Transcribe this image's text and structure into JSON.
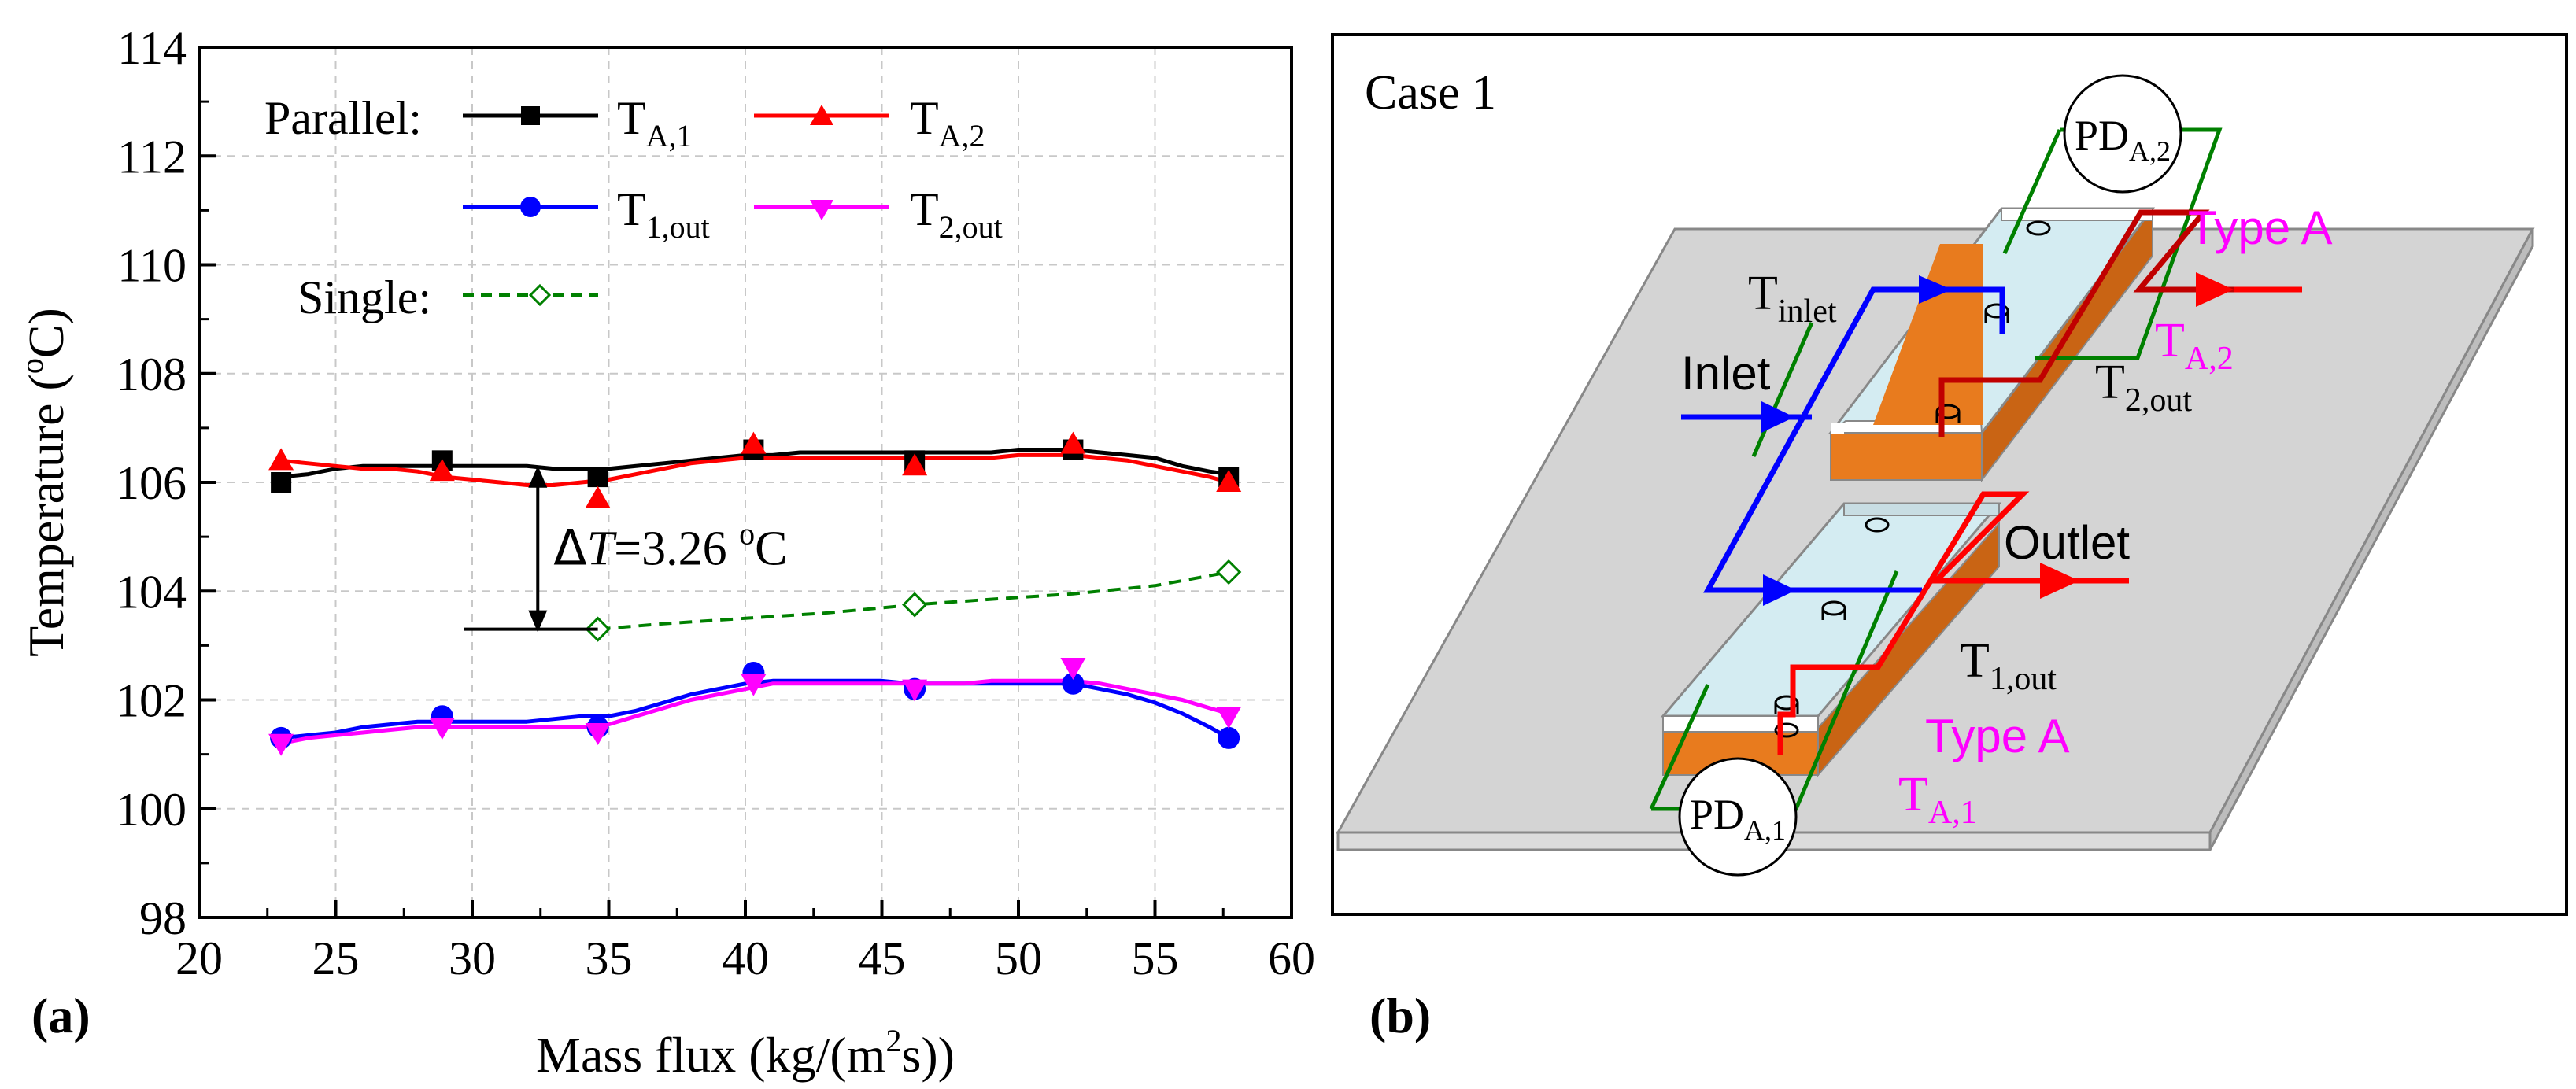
{
  "panel_a_label": "(a)",
  "panel_b_label": "(b)",
  "chart_data": {
    "type": "line",
    "title": "",
    "xlabel": "Mass flux (kg/(m²s))",
    "xlabel_parts": {
      "main": "Mass flux (kg/(m",
      "sup": "2",
      "tail": "s))"
    },
    "ylabel": "Temperature (°C)",
    "ylabel_parts": {
      "main": "Temperature (",
      "sup": "o",
      "tail": "C)"
    },
    "xlim": [
      20,
      60
    ],
    "ylim": [
      98,
      114
    ],
    "xticks": [
      20,
      25,
      30,
      35,
      40,
      45,
      50,
      55,
      60
    ],
    "yticks": [
      98,
      100,
      102,
      104,
      106,
      108,
      110,
      112,
      114
    ],
    "grid": true,
    "legend": {
      "parallel_label": "Parallel:",
      "single_label": "Single:",
      "placement": "top-left"
    },
    "series": [
      {
        "name": "T_A,1",
        "label_main": "T",
        "label_sub": "A,1",
        "color": "#000000",
        "marker": "square",
        "dash": "solid",
        "group": "Parallel",
        "x": [
          23.0,
          28.9,
          34.6,
          40.3,
          46.2,
          52.0,
          57.7
        ],
        "y": [
          106.0,
          106.4,
          106.1,
          106.6,
          106.4,
          106.6,
          106.1
        ],
        "curve_x": [
          23.0,
          24.0,
          25.0,
          26.0,
          27.0,
          28.0,
          29.0,
          30.0,
          31.0,
          32.0,
          33.0,
          34.0,
          35.0,
          36.0,
          37.0,
          38.0,
          39.0,
          40.0,
          41.0,
          42.0,
          43.0,
          44.0,
          45.0,
          46.0,
          47.0,
          48.0,
          49.0,
          50.0,
          51.0,
          52.0,
          53.0,
          54.0,
          55.0,
          56.0,
          57.0,
          57.7
        ],
        "curve_y": [
          106.1,
          106.15,
          106.25,
          106.3,
          106.3,
          106.3,
          106.3,
          106.3,
          106.3,
          106.3,
          106.25,
          106.25,
          106.25,
          106.3,
          106.35,
          106.4,
          106.45,
          106.5,
          106.5,
          106.55,
          106.55,
          106.55,
          106.55,
          106.55,
          106.55,
          106.55,
          106.55,
          106.6,
          106.6,
          106.6,
          106.55,
          106.5,
          106.45,
          106.3,
          106.2,
          106.15
        ]
      },
      {
        "name": "T_A,2",
        "label_main": "T",
        "label_sub": "A,2",
        "color": "#ff0000",
        "marker": "triangle-up",
        "dash": "solid",
        "group": "Parallel",
        "x": [
          23.0,
          28.9,
          34.6,
          40.3,
          46.2,
          52.0,
          57.7
        ],
        "y": [
          106.4,
          106.2,
          105.7,
          106.7,
          106.3,
          106.7,
          106.0
        ],
        "curve_x": [
          23.0,
          24.0,
          25.0,
          26.0,
          27.0,
          28.0,
          29.0,
          30.0,
          31.0,
          32.0,
          33.0,
          34.0,
          35.0,
          36.0,
          37.0,
          38.0,
          39.0,
          40.0,
          41.0,
          42.0,
          43.0,
          44.0,
          45.0,
          46.0,
          47.0,
          48.0,
          49.0,
          50.0,
          51.0,
          52.0,
          53.0,
          54.0,
          55.0,
          56.0,
          57.0,
          57.7
        ],
        "curve_y": [
          106.4,
          106.35,
          106.3,
          106.25,
          106.25,
          106.2,
          106.1,
          106.05,
          106.0,
          105.95,
          105.95,
          106.0,
          106.05,
          106.15,
          106.25,
          106.35,
          106.4,
          106.45,
          106.45,
          106.45,
          106.45,
          106.45,
          106.45,
          106.45,
          106.45,
          106.45,
          106.45,
          106.5,
          106.5,
          106.5,
          106.45,
          106.4,
          106.3,
          106.2,
          106.1,
          106.0
        ]
      },
      {
        "name": "T_1,out",
        "label_main": "T",
        "label_sub": "1,out",
        "color": "#0000ff",
        "marker": "circle",
        "dash": "solid",
        "group": "Parallel",
        "x": [
          23.0,
          28.9,
          34.6,
          40.3,
          46.2,
          52.0,
          57.7
        ],
        "y": [
          101.3,
          101.7,
          101.5,
          102.5,
          102.2,
          102.3,
          101.3
        ],
        "curve_x": [
          23.0,
          24.0,
          25.0,
          26.0,
          27.0,
          28.0,
          29.0,
          30.0,
          31.0,
          32.0,
          33.0,
          34.0,
          35.0,
          36.0,
          37.0,
          38.0,
          39.0,
          40.0,
          41.0,
          42.0,
          43.0,
          44.0,
          45.0,
          46.0,
          47.0,
          48.0,
          49.0,
          50.0,
          51.0,
          52.0,
          53.0,
          54.0,
          55.0,
          56.0,
          57.0,
          57.7
        ],
        "curve_y": [
          101.3,
          101.35,
          101.4,
          101.5,
          101.55,
          101.6,
          101.6,
          101.6,
          101.6,
          101.6,
          101.65,
          101.7,
          101.7,
          101.8,
          101.95,
          102.1,
          102.2,
          102.3,
          102.35,
          102.35,
          102.35,
          102.35,
          102.35,
          102.3,
          102.3,
          102.3,
          102.3,
          102.3,
          102.3,
          102.3,
          102.2,
          102.1,
          101.95,
          101.75,
          101.5,
          101.3
        ]
      },
      {
        "name": "T_2,out",
        "label_main": "T",
        "label_sub": "2,out",
        "color": "#ff00ff",
        "marker": "triangle-down",
        "dash": "solid",
        "group": "Parallel",
        "x": [
          23.0,
          28.9,
          34.6,
          40.3,
          46.2,
          52.0,
          57.7
        ],
        "y": [
          101.2,
          101.5,
          101.4,
          102.3,
          102.2,
          102.6,
          101.7
        ],
        "curve_x": [
          23.0,
          24.0,
          25.0,
          26.0,
          27.0,
          28.0,
          29.0,
          30.0,
          31.0,
          32.0,
          33.0,
          34.0,
          35.0,
          36.0,
          37.0,
          38.0,
          39.0,
          40.0,
          41.0,
          42.0,
          43.0,
          44.0,
          45.0,
          46.0,
          47.0,
          48.0,
          49.0,
          50.0,
          51.0,
          52.0,
          53.0,
          54.0,
          55.0,
          56.0,
          57.0,
          57.7
        ],
        "curve_y": [
          101.2,
          101.3,
          101.35,
          101.4,
          101.45,
          101.5,
          101.5,
          101.5,
          101.5,
          101.5,
          101.5,
          101.5,
          101.55,
          101.7,
          101.85,
          102.0,
          102.1,
          102.2,
          102.3,
          102.3,
          102.3,
          102.3,
          102.3,
          102.3,
          102.3,
          102.3,
          102.35,
          102.35,
          102.35,
          102.35,
          102.3,
          102.2,
          102.1,
          102.0,
          101.85,
          101.75
        ]
      },
      {
        "name": "Single",
        "label_main": "",
        "label_sub": "",
        "color": "#008000",
        "marker": "diamond-open",
        "dash": "dashed",
        "group": "Single",
        "x": [
          34.6,
          46.2,
          57.7
        ],
        "y": [
          103.3,
          103.75,
          104.35
        ],
        "curve_x": [
          34.6,
          37.0,
          40.0,
          43.0,
          46.2,
          49.0,
          52.0,
          55.0,
          57.7
        ],
        "curve_y": [
          103.3,
          103.4,
          103.5,
          103.6,
          103.75,
          103.85,
          103.95,
          104.1,
          104.35
        ]
      }
    ],
    "annotation": {
      "label_prefix": "Δ",
      "label_var": "T",
      "label_value": "=3.26 ",
      "label_unit_sup": "o",
      "label_unit": "C",
      "x": 32.4,
      "y_top": 106.25,
      "y_bottom": 103.3,
      "ref_line_x_start": 29.7,
      "ref_line_x_end": 34.6
    }
  },
  "diagram": {
    "case_label": "Case 1",
    "pd_a2": {
      "main": "PD",
      "sub": "A,2"
    },
    "pd_a1": {
      "main": "PD",
      "sub": "A,1"
    },
    "t_inlet": {
      "main": "T",
      "sub": "inlet"
    },
    "inlet_label": "Inlet",
    "outlet_label": "Outlet",
    "type_a_top": "Type A",
    "type_a_bottom": "Type A",
    "t_a2": {
      "main": "T",
      "sub": "A,2"
    },
    "t_2out": {
      "main": "T",
      "sub": "2,out"
    },
    "t_1out": {
      "main": "T",
      "sub": "1,out"
    },
    "t_a1": {
      "main": "T",
      "sub": "A,1"
    },
    "colors": {
      "inlet_path": "#0000ff",
      "outlet_path": "#ff0000",
      "dark_outlet_path": "#c00000",
      "pd_loop": "#008000",
      "copper": "#e87b1e",
      "glass": "#d4ecf2",
      "plate": "#d4d4d4",
      "label_magenta": "#ff00ff"
    }
  }
}
